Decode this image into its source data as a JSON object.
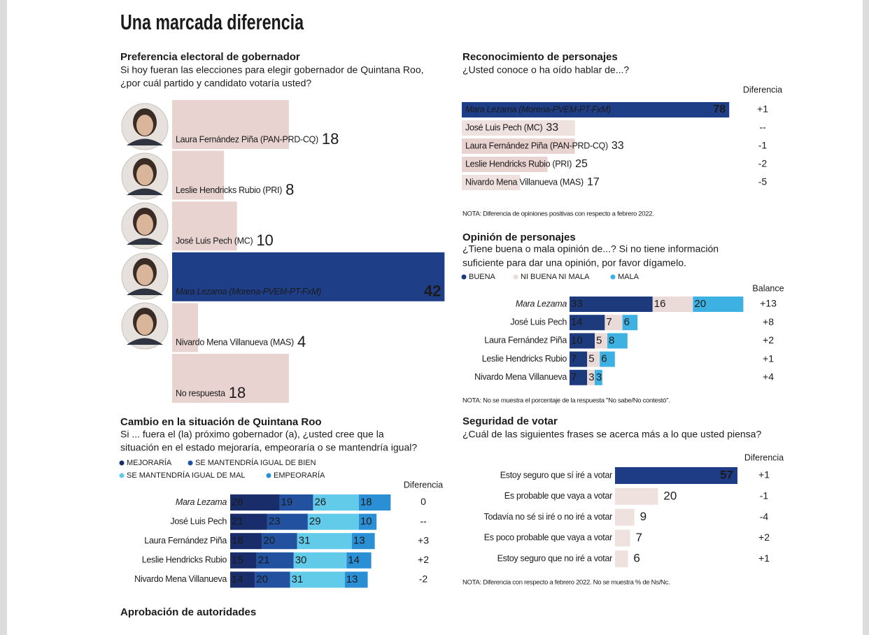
{
  "title": "Una marcada diferencia",
  "chart_data": [
    {
      "type": "bar",
      "title": "Preferencia electoral de gobernador",
      "subtitle": [
        "Si hoy fueran las elecciones para elegir gobernador de Quintana Roo,",
        "¿por cuál partido y candidato votaría usted?"
      ],
      "categories": [
        "Laura Fernández Piña (PAN-PRD-CQ)",
        "Leslie Hendricks Rubio (PRI)",
        "José Luis Pech (MC)",
        "Mara Lezama (Morena-PVEM-PT-FxM)",
        "Nivardo Mena Villanueva (MAS)",
        "No respuesta"
      ],
      "values": [
        18,
        8,
        10,
        42,
        4,
        18
      ],
      "colors": [
        "#e9d3d0",
        "#e9d3d0",
        "#e9d3d0",
        "#1e3e87",
        "#e9d3d0",
        "#e9d3d0"
      ]
    },
    {
      "type": "bar",
      "title": "Reconocimiento de personajes",
      "subtitle": [
        "¿Usted conoce o ha oído hablar de...?"
      ],
      "categories": [
        "Mara Lezama (Morena-PVEM-PT-FxM)",
        "José Luis Pech (MC)",
        "Laura Fernández Piña (PAN-PRD-CQ)",
        "Leslie Hendricks Rubio (PRI)",
        "Nivardo Mena Villanueva (MAS)"
      ],
      "values": [
        78,
        33,
        33,
        25,
        17
      ],
      "colors": [
        "#1e3e87",
        "#efe1de",
        "#e9d3d0",
        "#e9d3d0",
        "#efe1de"
      ],
      "difference_header": "Diferencia",
      "difference": [
        "+1",
        "--",
        "-1",
        "-2",
        "-5"
      ],
      "note": "NOTA: Diferencia de opiniones positivas con respecto a febrero 2022."
    },
    {
      "type": "stacked_bar",
      "title": "Opinión de personajes",
      "subtitle": [
        "¿Tiene buena o mala opinión de...? Si no tiene información",
        "suficiente para dar una opinión, por favor dígamelo."
      ],
      "categories": [
        "Mara Lezama",
        "José Luis Pech",
        "Laura Fernández Piña",
        "Leslie Hendricks Rubio",
        "Nivardo Mena Villanueva"
      ],
      "series": [
        {
          "name": "BUENA",
          "color": "#1c3a7c",
          "values": [
            33,
            14,
            10,
            7,
            7
          ]
        },
        {
          "name": "NI BUENA NI MALA",
          "color": "#ebdbd8",
          "values": [
            16,
            7,
            5,
            5,
            3
          ]
        },
        {
          "name": "MALA",
          "color": "#3db2e2",
          "values": [
            20,
            6,
            8,
            6,
            3
          ]
        }
      ],
      "difference_header": "Balance",
      "difference": [
        "+13",
        "+8",
        "+2",
        "+1",
        "+4"
      ],
      "note": "NOTA: No se muestra el porcentaje de la respuesta \"No sabe/No contestó\"."
    },
    {
      "type": "stacked_bar",
      "title": "Cambio en la situación de Quintana Roo",
      "subtitle": [
        "Si ... fuera el (la) próximo gobernador (a), ¿usted cree que la",
        "situación en el estado mejoraría, empeoraría o se mantendría igual?"
      ],
      "categories": [
        "Mara Lezama",
        "José Luis Pech",
        "Laura Fernández Piña",
        "Leslie Hendricks Rubio",
        "Nivardo Mena Villanueva"
      ],
      "series": [
        {
          "name": "MEJORARÍA",
          "color": "#1a2d6b",
          "values": [
            28,
            21,
            18,
            15,
            14
          ]
        },
        {
          "name": "SE MANTENDRÍA IGUAL DE BIEN",
          "color": "#21519f",
          "values": [
            19,
            23,
            20,
            21,
            20
          ]
        },
        {
          "name": "SE MANTENDRÍA IGUAL DE MAL",
          "color": "#62cbea",
          "values": [
            26,
            29,
            31,
            30,
            31
          ]
        },
        {
          "name": "EMPEORARÍA",
          "color": "#2b8fd6",
          "values": [
            18,
            10,
            13,
            14,
            13
          ]
        }
      ],
      "difference_header": "Diferencia",
      "difference": [
        "0",
        "--",
        "+3",
        "+2",
        "-2"
      ]
    },
    {
      "type": "bar",
      "title": "Seguridad de votar",
      "subtitle": [
        "¿Cuál de las siguientes frases se acerca más a lo que usted piensa?"
      ],
      "categories": [
        "Estoy seguro que sí iré a votar",
        "Es probable que vaya a votar",
        "Todavía no sé si iré o no iré a votar",
        "Es poco probable que vaya a votar",
        "Estoy seguro que no iré a votar"
      ],
      "values": [
        57,
        20,
        9,
        7,
        6
      ],
      "colors": [
        "#1e3b85",
        "#efe1de",
        "#efe1de",
        "#efe1de",
        "#efe1de"
      ],
      "difference_header": "Diferencia",
      "difference": [
        "+1",
        "-1",
        "-4",
        "+2",
        "+1"
      ],
      "note": "NOTA: Diferencia con respecto a febrero 2022. No se muestra % de Ns/Nc."
    }
  ],
  "next_section": "Aprobación de autoridades"
}
